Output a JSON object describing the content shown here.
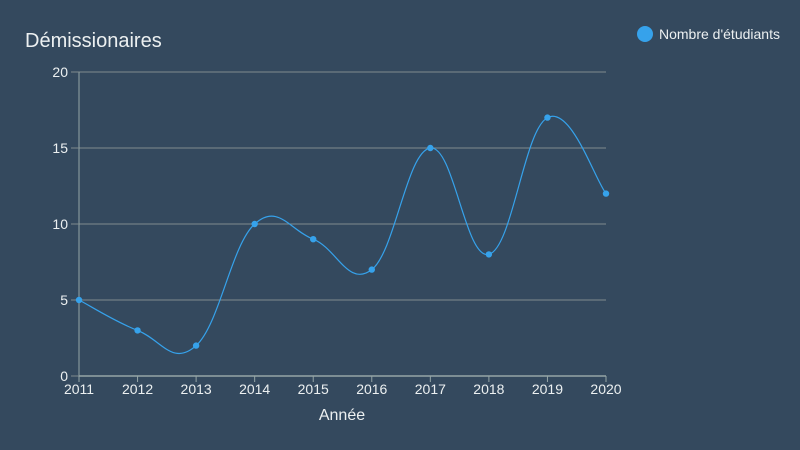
{
  "chart_data": {
    "type": "line",
    "title": "Démissionaires",
    "xlabel": "Année",
    "ylabel": "",
    "x": [
      "2011",
      "2012",
      "2013",
      "2014",
      "2015",
      "2016",
      "2017",
      "2018",
      "2019",
      "2020"
    ],
    "series": [
      {
        "name": "Nombre d'étudiants",
        "color": "#36a2eb",
        "values": [
          5,
          3,
          2,
          10,
          9,
          7,
          15,
          8,
          17,
          12
        ]
      }
    ],
    "ylim": [
      0,
      20
    ],
    "yticks": [
      0,
      5,
      10,
      15,
      20
    ],
    "grid": "horizontal",
    "legend": "top-right",
    "curve": "smooth"
  },
  "colors": {
    "background": "#34495e",
    "text": "#ecf0f1",
    "grid": "#7f8c8d",
    "axis": "#95a5a6"
  }
}
